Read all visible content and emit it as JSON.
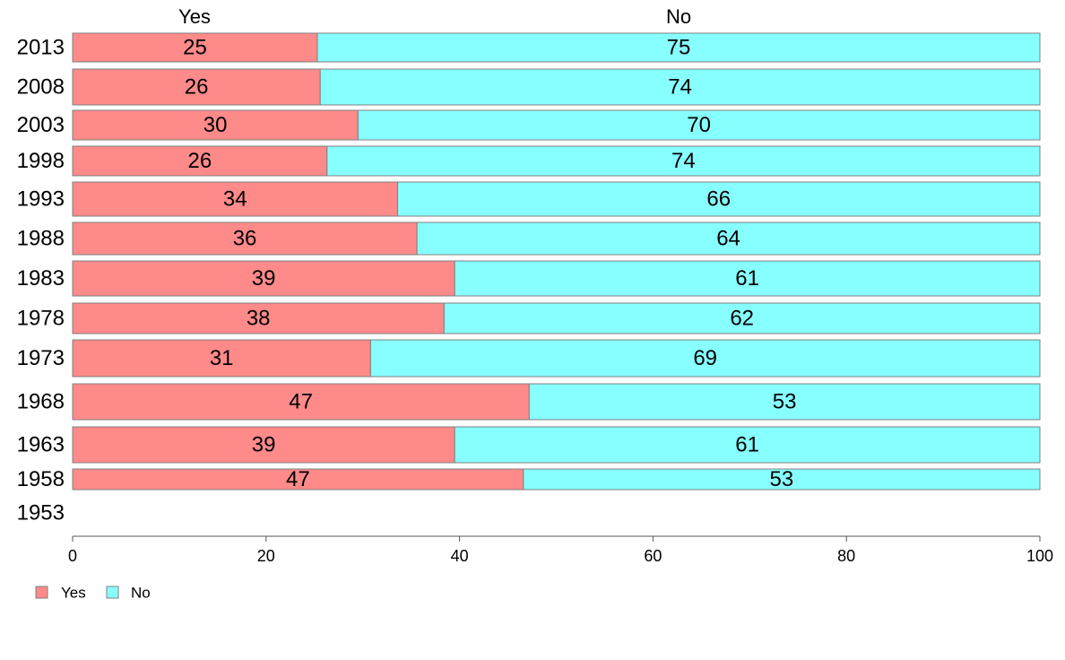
{
  "chart_data": {
    "type": "bar",
    "orientation": "horizontal",
    "stacked": true,
    "categories": [
      "2013",
      "2008",
      "2003",
      "1998",
      "1993",
      "1988",
      "1983",
      "1978",
      "1973",
      "1968",
      "1963",
      "1958",
      "1953"
    ],
    "series": [
      {
        "name": "Yes",
        "color": "#ff8a8a",
        "values": [
          25.3,
          25.6,
          29.5,
          26.3,
          33.6,
          35.6,
          39.5,
          38.4,
          30.8,
          47.2,
          39.5,
          46.6,
          null
        ],
        "labels": [
          "25",
          "26",
          "30",
          "26",
          "34",
          "36",
          "39",
          "38",
          "31",
          "47",
          "39",
          "47",
          ""
        ]
      },
      {
        "name": "No",
        "color": "#87ffff",
        "values": [
          74.7,
          74.4,
          70.5,
          73.7,
          66.4,
          64.4,
          60.5,
          61.6,
          69.2,
          52.8,
          60.5,
          53.4,
          null
        ],
        "labels": [
          "75",
          "74",
          "70",
          "74",
          "66",
          "64",
          "61",
          "62",
          "69",
          "53",
          "61",
          "53",
          ""
        ]
      }
    ],
    "column_headers": [
      "Yes",
      "No"
    ],
    "xlim": [
      0,
      100
    ],
    "xticks": [
      0,
      20,
      40,
      60,
      80,
      100
    ],
    "grid": false,
    "legend_position": "bottom-left",
    "bar_border_color": "#7f7f7f"
  }
}
